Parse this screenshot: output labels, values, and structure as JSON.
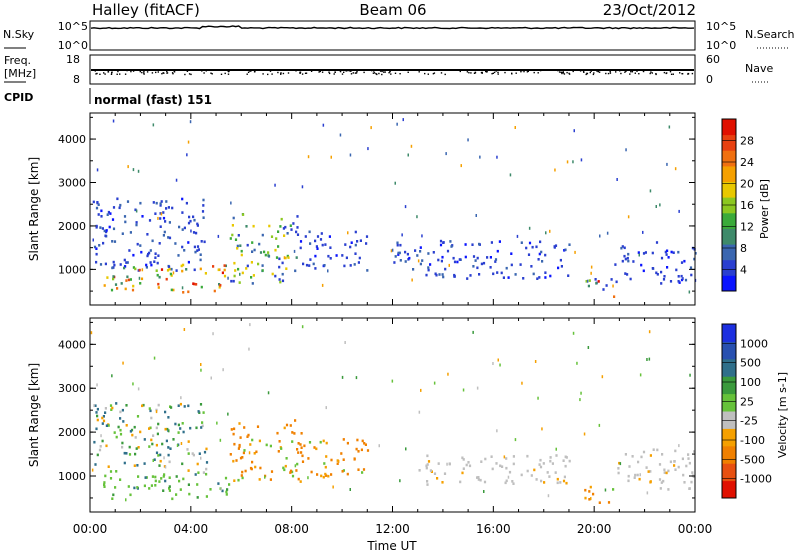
{
  "header": {
    "title": "Halley (fitACF)",
    "beam": "Beam 06",
    "date": "23/Oct/2012"
  },
  "noise_panel": {
    "left_label": "N.Sky",
    "right_label": "N.Search",
    "left_ticks": [
      "10^5",
      "10^0"
    ],
    "right_ticks": [
      "10^5",
      "10^0"
    ]
  },
  "freq_panel": {
    "left_label_1": "Freq.",
    "left_label_2": "[MHz]",
    "right_label": "Nave",
    "left_ticks": [
      18,
      8
    ],
    "right_ticks": [
      60,
      0
    ]
  },
  "cpid": {
    "label": "CPID",
    "value": "normal (fast) 151"
  },
  "x_axis": {
    "label": "Time UT",
    "ticks": [
      "00:00",
      "04:00",
      "08:00",
      "12:00",
      "16:00",
      "20:00",
      "00:00"
    ]
  },
  "chart_data": [
    {
      "type": "heatmap",
      "quantity": "Power",
      "ylabel": "Slant Range [km]",
      "yticks": [
        1000,
        2000,
        3000,
        4000
      ],
      "ylim": [
        180,
        4600
      ],
      "xlim_hours": [
        0,
        24
      ],
      "colorbar": {
        "label": "Power [dB]",
        "ticks": [
          4,
          8,
          12,
          16,
          20,
          24,
          28
        ],
        "colors": [
          "#0a14ff",
          "#2a3fd0",
          "#3a66b0",
          "#3e8a6a",
          "#3aaa3a",
          "#8cc820",
          "#e8c800",
          "#f5a000",
          "#f07010",
          "#e84010",
          "#e01000"
        ]
      },
      "regions": [
        {
          "t0": 0.1,
          "t1": 4.6,
          "r0": 1000,
          "r1": 2700,
          "level": "low"
        },
        {
          "t0": 0.5,
          "t1": 5.5,
          "r0": 500,
          "r1": 1150,
          "level": "high"
        },
        {
          "t0": 5.5,
          "t1": 8.2,
          "r0": 700,
          "r1": 2300,
          "level": "mid"
        },
        {
          "t0": 8.2,
          "t1": 11.0,
          "r0": 1000,
          "r1": 1900,
          "level": "low"
        },
        {
          "t0": 12.0,
          "t1": 19.0,
          "r0": 800,
          "r1": 1700,
          "level": "low"
        },
        {
          "t0": 19.5,
          "t1": 20.8,
          "r0": 400,
          "r1": 850,
          "level": "mixed"
        },
        {
          "t0": 20.8,
          "t1": 24.0,
          "r0": 700,
          "r1": 1650,
          "level": "low"
        }
      ]
    },
    {
      "type": "heatmap",
      "quantity": "Velocity",
      "ylabel": "Slant Range [km]",
      "yticks": [
        1000,
        2000,
        3000,
        4000
      ],
      "ylim": [
        180,
        4600
      ],
      "xlim_hours": [
        0,
        24
      ],
      "colorbar": {
        "label": "Velocity [m s-1]",
        "ticks": [
          "1000",
          "500",
          "100",
          "25",
          "-25",
          "-100",
          "-500",
          "-1000"
        ],
        "colors": [
          "#1c2fe0",
          "#2850b0",
          "#2f6f8a",
          "#3a9a3c",
          "#66c23a",
          "#bfbfbf",
          "#f5a000",
          "#f08000",
          "#e85010",
          "#e01000"
        ]
      },
      "regions": [
        {
          "t0": 0.1,
          "t1": 4.6,
          "r0": 1100,
          "r1": 2700,
          "level": "mixed"
        },
        {
          "t0": 0.5,
          "t1": 5.5,
          "r0": 500,
          "r1": 1150,
          "level": "green"
        },
        {
          "t0": 5.5,
          "t1": 8.5,
          "r0": 900,
          "r1": 2300,
          "level": "orange"
        },
        {
          "t0": 8.5,
          "t1": 11.0,
          "r0": 1000,
          "r1": 1900,
          "level": "orange"
        },
        {
          "t0": 13.0,
          "t1": 19.0,
          "r0": 800,
          "r1": 1500,
          "level": "grey"
        },
        {
          "t0": 19.5,
          "t1": 20.8,
          "r0": 400,
          "r1": 800,
          "level": "orange"
        },
        {
          "t0": 20.8,
          "t1": 24.0,
          "r0": 700,
          "r1": 1650,
          "level": "grey"
        }
      ]
    }
  ]
}
